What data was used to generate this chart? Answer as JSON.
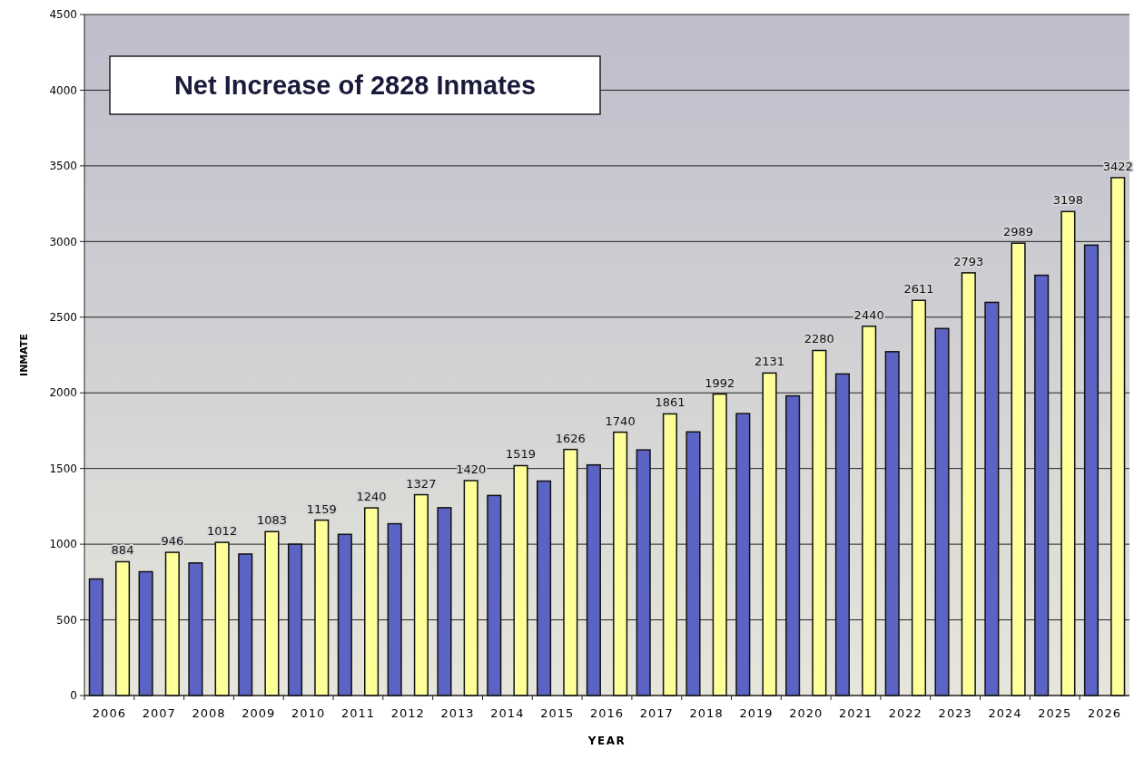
{
  "chart_data": {
    "type": "bar",
    "title": "Net Increase of 2828 Inmates",
    "xlabel": "YEAR",
    "ylabel": "INMATE",
    "categories": [
      "2006",
      "2007",
      "2008",
      "2009",
      "2010",
      "2011",
      "2012",
      "2013",
      "2014",
      "2015",
      "2016",
      "2017",
      "2018",
      "2019",
      "2020",
      "2021",
      "2022",
      "2023",
      "2024",
      "2025",
      "2026"
    ],
    "series": [
      {
        "color": "#5b63c4",
        "values": [
          770,
          818,
          876,
          935,
          1000,
          1065,
          1135,
          1241,
          1322,
          1417,
          1524,
          1623,
          1742,
          1863,
          1980,
          2125,
          2272,
          2425,
          2598,
          2777,
          2976
        ]
      },
      {
        "color": "#ffff99",
        "values": [
          884,
          946,
          1012,
          1083,
          1159,
          1240,
          1327,
          1420,
          1519,
          1626,
          1740,
          1861,
          1992,
          2131,
          2280,
          2440,
          2611,
          2793,
          2989,
          3198,
          3422
        ],
        "value_labels": [
          "884",
          "946",
          "1012",
          "1083",
          "1159",
          "1240",
          "1327",
          "1420",
          "1519",
          "1626",
          "1740",
          "1861",
          "1992",
          "2131",
          "2280",
          "2440",
          "2611",
          "2793",
          "2989",
          "3198",
          "3422"
        ]
      }
    ],
    "ylim": [
      0,
      4500
    ],
    "yticks": [
      0,
      500,
      1000,
      1500,
      2000,
      2500,
      3000,
      3500,
      4000,
      4500
    ],
    "grid": "y"
  }
}
